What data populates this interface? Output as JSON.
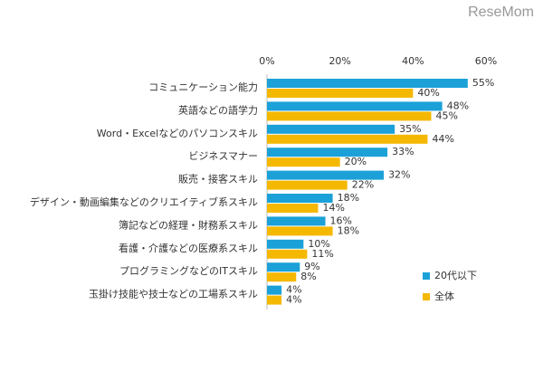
{
  "watermark": "ReseMom",
  "chart_data": {
    "type": "bar",
    "orientation": "horizontal",
    "categories": [
      "コミュニケーション能力",
      "英語などの語学力",
      "Word・Excelなどのパソコンスキル",
      "ビジネスマナー",
      "販売・接客スキル",
      "デザイン・動画編集などのクリエイティブ系スキル",
      "簿記などの経理・財務系スキル",
      "看護・介護などの医療系スキル",
      "プログラミングなどのITスキル",
      "玉掛け技能や技士などの工場系スキル"
    ],
    "series": [
      {
        "name": "20代以下",
        "color": "#1ba1d8",
        "values": [
          55,
          48,
          35,
          33,
          32,
          18,
          16,
          10,
          9,
          4
        ],
        "value_labels": [
          "55%",
          "48%",
          "35%",
          "33%",
          "32%",
          "18%",
          "16%",
          "10%",
          "9%",
          "4%"
        ]
      },
      {
        "name": "全体",
        "color": "#f5b800",
        "values": [
          40,
          45,
          44,
          20,
          22,
          14,
          18,
          11,
          8,
          4
        ],
        "value_labels": [
          "40%",
          "45%",
          "44%",
          "20%",
          "22%",
          "14%",
          "18%",
          "11%",
          "8%",
          "4%"
        ]
      }
    ],
    "xlim": [
      0,
      60
    ],
    "xticks": [
      {
        "value": 0,
        "label": "0%"
      },
      {
        "value": 20,
        "label": "20%"
      },
      {
        "value": 40,
        "label": "40%"
      },
      {
        "value": 60,
        "label": "60%"
      }
    ],
    "legend": "lower-right"
  }
}
